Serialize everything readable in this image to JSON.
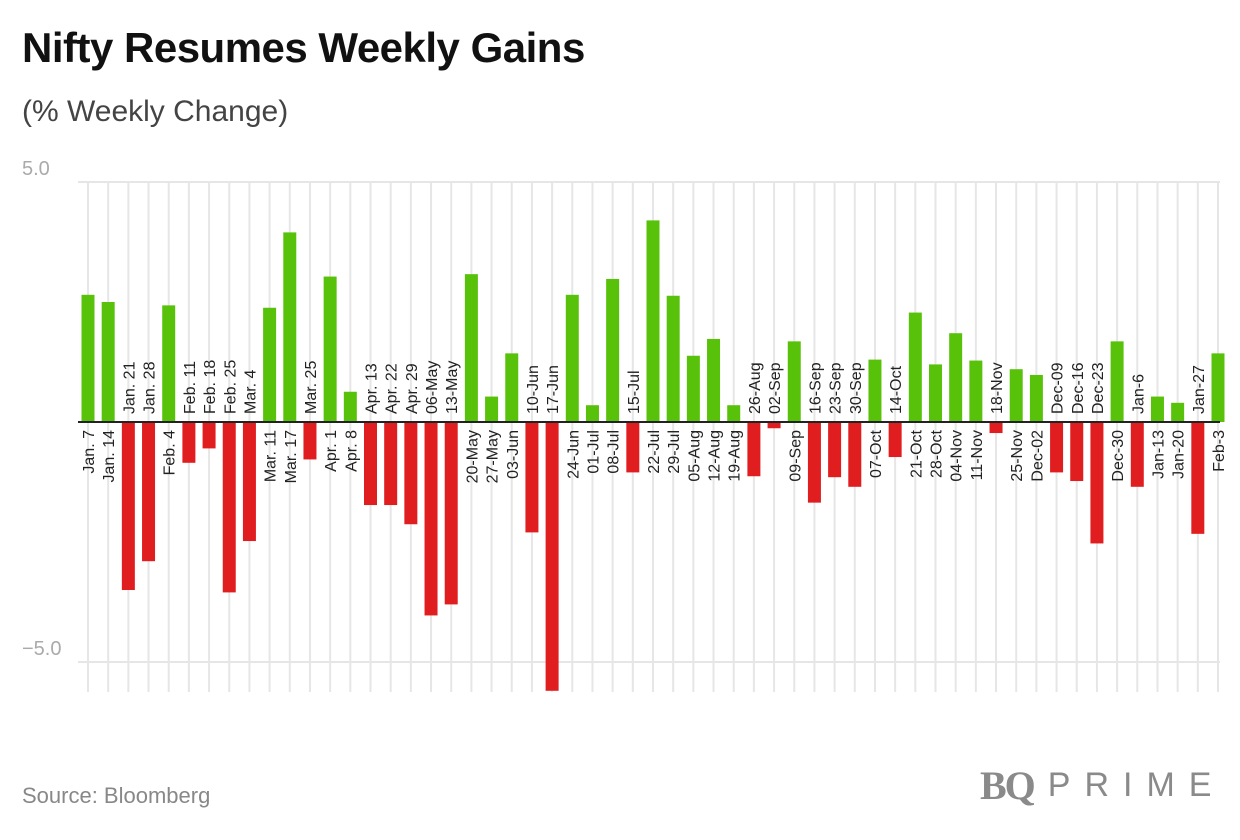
{
  "header": {
    "title": "Nifty Resumes Weekly Gains",
    "subtitle": "(% Weekly Change)"
  },
  "footer": {
    "source": "Source: Bloomberg",
    "logo_bq": "BQ",
    "logo_prime": "PRIME"
  },
  "colors": {
    "positive": "#58c20a",
    "negative": "#e01e20",
    "grid": "#e6e6e6",
    "baseline": "#222222"
  },
  "chart_data": {
    "type": "bar",
    "title": "Nifty Resumes Weekly Gains",
    "subtitle": "(% Weekly Change)",
    "ylim": [
      -5.6,
      5
    ],
    "yticks": [
      5,
      -5
    ],
    "ytick_labels": [
      "5.0",
      "−5.0"
    ],
    "grid": true,
    "categories": [
      "Jan. 7",
      "Jan. 14",
      "Jan. 21",
      "Jan. 28",
      "Feb. 4",
      "Feb. 11",
      "Feb. 18",
      "Feb. 25",
      "Mar. 4",
      "Mar. 11",
      "Mar. 17",
      "Mar. 25",
      "Apr. 1",
      "Apr. 8",
      "Apr. 13",
      "Apr. 22",
      "Apr. 29",
      "06-May",
      "13-May",
      "20-May",
      "27-May",
      "03-Jun",
      "10-Jun",
      "17-Jun",
      "24-Jun",
      "01-Jul",
      "08-Jul",
      "15-Jul",
      "22-Jul",
      "29-Jul",
      "05-Aug",
      "12-Aug",
      "19-Aug",
      "26-Aug",
      "02-Sep",
      "09-Sep",
      "16-Sep",
      "23-Sep",
      "30-Sep",
      "07-Oct",
      "14-Oct",
      "21-Oct",
      "28-Oct",
      "04-Nov",
      "11-Nov",
      "18-Nov",
      "25-Nov",
      "Dec-02",
      "Dec-09",
      "Dec-16",
      "Dec-23",
      "Dec-30",
      "Jan-6",
      "Jan-13",
      "Jan-20",
      "Jan-27",
      "Feb-3"
    ],
    "values": [
      2.65,
      2.5,
      -3.5,
      -2.9,
      2.43,
      -0.85,
      -0.55,
      -3.55,
      -2.48,
      2.38,
      3.95,
      -0.78,
      3.03,
      0.63,
      -1.73,
      -1.73,
      -2.13,
      -4.03,
      -3.8,
      3.08,
      0.53,
      1.43,
      -2.3,
      -5.6,
      2.65,
      0.35,
      2.98,
      -1.05,
      4.2,
      2.63,
      1.38,
      1.73,
      0.35,
      -1.13,
      -0.13,
      1.68,
      -1.68,
      -1.15,
      -1.35,
      1.3,
      -0.73,
      2.28,
      1.2,
      1.85,
      1.28,
      -0.23,
      1.1,
      0.98,
      -1.05,
      -1.23,
      -2.53,
      1.68,
      -1.35,
      0.53,
      0.4,
      -2.33,
      1.43
    ]
  }
}
